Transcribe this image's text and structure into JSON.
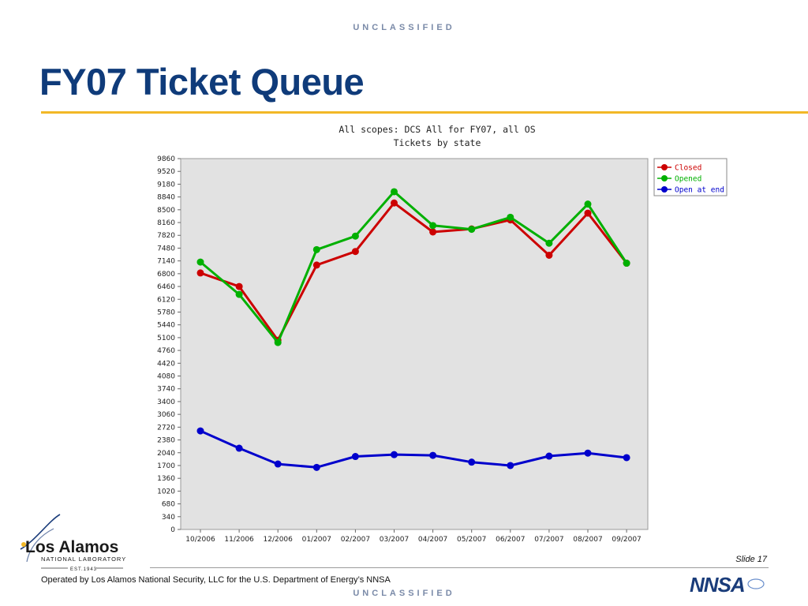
{
  "classification": "UNCLASSIFIED",
  "slide": {
    "title": "FY07 Ticket Queue",
    "number_label": "Slide 17",
    "footer": "Operated by Los Alamos National Security, LLC for the U.S. Department of Energy’s NNSA"
  },
  "logos": {
    "lab_name": "Los Alamos",
    "lab_subtitle": "NATIONAL LABORATORY",
    "lab_est": "EST.1943",
    "agency": "NNSA"
  },
  "chart_data": {
    "type": "line",
    "title": "All scopes: DCS All for FY07, all OS",
    "subtitle": "Tickets by state",
    "categories": [
      "10/2006",
      "11/2006",
      "12/2006",
      "01/2007",
      "02/2007",
      "03/2007",
      "04/2007",
      "05/2007",
      "06/2007",
      "07/2007",
      "08/2007",
      "09/2007"
    ],
    "y_ticks": [
      0,
      340,
      680,
      1020,
      1360,
      1700,
      2040,
      2380,
      2720,
      3060,
      3400,
      3740,
      4080,
      4420,
      4760,
      5100,
      5440,
      5780,
      6120,
      6460,
      6800,
      7140,
      7480,
      7820,
      8160,
      8500,
      8840,
      9180,
      9520,
      9860
    ],
    "ylim": [
      0,
      9860
    ],
    "grid": false,
    "legend_position": "top-right",
    "series": [
      {
        "name": "Closed",
        "color": "#cc0000",
        "values": [
          6820,
          6460,
          5030,
          7030,
          7390,
          8680,
          7910,
          7990,
          8230,
          7290,
          8410,
          7080
        ]
      },
      {
        "name": "Opened",
        "color": "#00b000",
        "values": [
          7110,
          6250,
          4970,
          7440,
          7800,
          8980,
          8080,
          7980,
          8300,
          7610,
          8650,
          7080
        ]
      },
      {
        "name": "Open at end",
        "color": "#0000cc",
        "values": [
          2620,
          2160,
          1740,
          1650,
          1940,
          1990,
          1970,
          1790,
          1700,
          1950,
          2030,
          1910
        ]
      }
    ]
  }
}
